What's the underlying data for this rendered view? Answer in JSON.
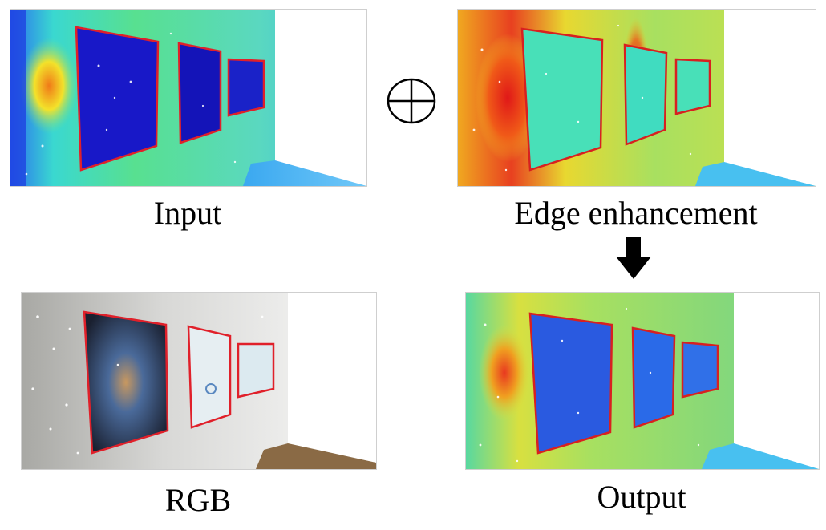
{
  "panels": {
    "input": {
      "caption": "Input"
    },
    "edge": {
      "caption": "Edge enhancement"
    },
    "rgb": {
      "caption": "RGB"
    },
    "output": {
      "caption": "Output"
    }
  },
  "operators": {
    "combine": "direct-sum-icon",
    "flow": "down-arrow-icon"
  },
  "colors": {
    "frame_outline": "#e0202a",
    "low": "#1a1ad0",
    "mid": "#2fe0c8",
    "high": "#e8241a",
    "wall": "#f3f3f1",
    "floor": "#8a6a45"
  }
}
